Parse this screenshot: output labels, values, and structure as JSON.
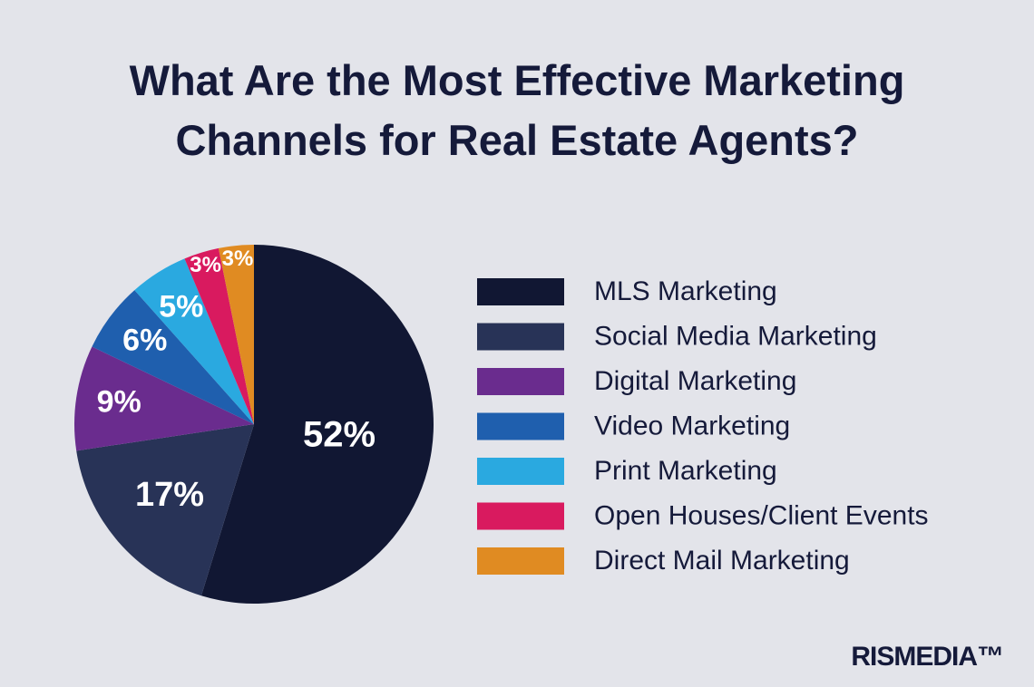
{
  "chart_data": {
    "type": "pie",
    "title": "What Are the Most Effective Marketing Channels for Real Estate Agents?",
    "categories": [
      "MLS Marketing",
      "Social Media Marketing",
      "Digital Marketing",
      "Video Marketing",
      "Print Marketing",
      "Open Houses/Client Events",
      "Direct Mail Marketing"
    ],
    "values": [
      52,
      17,
      9,
      6,
      5,
      3,
      3
    ],
    "value_labels": [
      "52%",
      "17%",
      "9%",
      "6%",
      "5%",
      "3%",
      "3%"
    ],
    "colors": [
      "#111733",
      "#283357",
      "#6a2c8e",
      "#1f5fae",
      "#2aa9e0",
      "#d91a5f",
      "#e08b22"
    ],
    "legend": "right"
  },
  "brand": "RISMEDIA™"
}
